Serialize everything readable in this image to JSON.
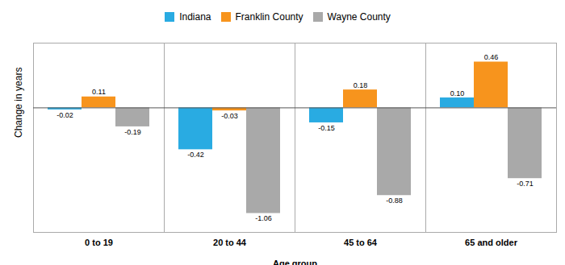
{
  "chart_data": {
    "type": "bar",
    "categories": [
      "0 to 19",
      "20 to 44",
      "45 to 64",
      "65 and older"
    ],
    "series": [
      {
        "name": "Indiana",
        "color": "#29ABE2",
        "values": [
          -0.02,
          -0.42,
          -0.15,
          0.1
        ],
        "value_labels": [
          "-0.02",
          "-0.42",
          "-0.15",
          "0.10"
        ]
      },
      {
        "name": "Franklin County",
        "color": "#F7941D",
        "values": [
          0.11,
          -0.03,
          0.18,
          0.46
        ],
        "value_labels": [
          "0.11",
          "-0.03",
          "0.18",
          "0.46"
        ]
      },
      {
        "name": "Wayne County",
        "color": "#A9A9A9",
        "values": [
          -0.19,
          -1.06,
          -0.88,
          -0.71
        ],
        "value_labels": [
          "-0.19",
          "-1.06",
          "-0.88",
          "-0.71"
        ]
      }
    ],
    "xlabel": "Age group",
    "ylabel": "Change in years",
    "ylim": [
      -1.25,
      0.65
    ],
    "yticks": [],
    "tick_labels": "x",
    "grid": false,
    "legend": "top",
    "data_labels": true
  }
}
